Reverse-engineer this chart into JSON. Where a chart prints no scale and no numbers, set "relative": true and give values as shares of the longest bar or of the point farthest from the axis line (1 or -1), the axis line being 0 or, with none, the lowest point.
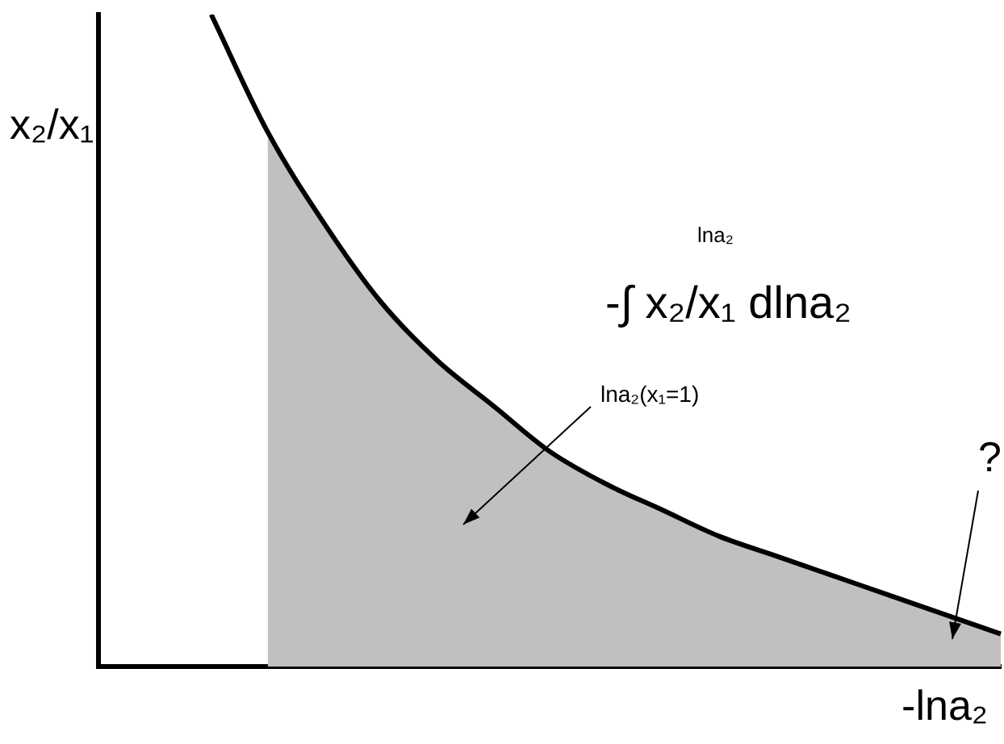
{
  "chart_data": {
    "type": "line",
    "relative": true,
    "ylabel": "x₂/x₁",
    "xlabel": "-lna₂",
    "categories": [
      null,
      null,
      null,
      null,
      null,
      null,
      null,
      null,
      null,
      null,
      null,
      null,
      null,
      null,
      null,
      null,
      null
    ],
    "series": [
      {
        "color": "#000000",
        "values": [
          null,
          null,
          1,
          0.82,
          0.68,
          0.56,
          0.47,
          0.4,
          0.33,
          0.28,
          0.24,
          0.2,
          0.17,
          0.14,
          0.11,
          0.08,
          0.05
        ]
      },
      {
        "type": "area",
        "color": "#c0c0c0",
        "values": [
          null,
          null,
          null,
          0.82,
          0.68,
          0.56,
          0.47,
          0.4,
          0.33,
          0.28,
          0.24,
          0.2,
          0.17,
          0.14,
          0.11,
          0.08,
          0.05
        ]
      }
    ],
    "annotations": [
      "-∫ x₂/x₁ dlna₂",
      "lna₂",
      "lna₂(x₁=1)",
      "?"
    ],
    "grid": false,
    "legend": false,
    "marker": "none",
    "line_style": "solid"
  }
}
